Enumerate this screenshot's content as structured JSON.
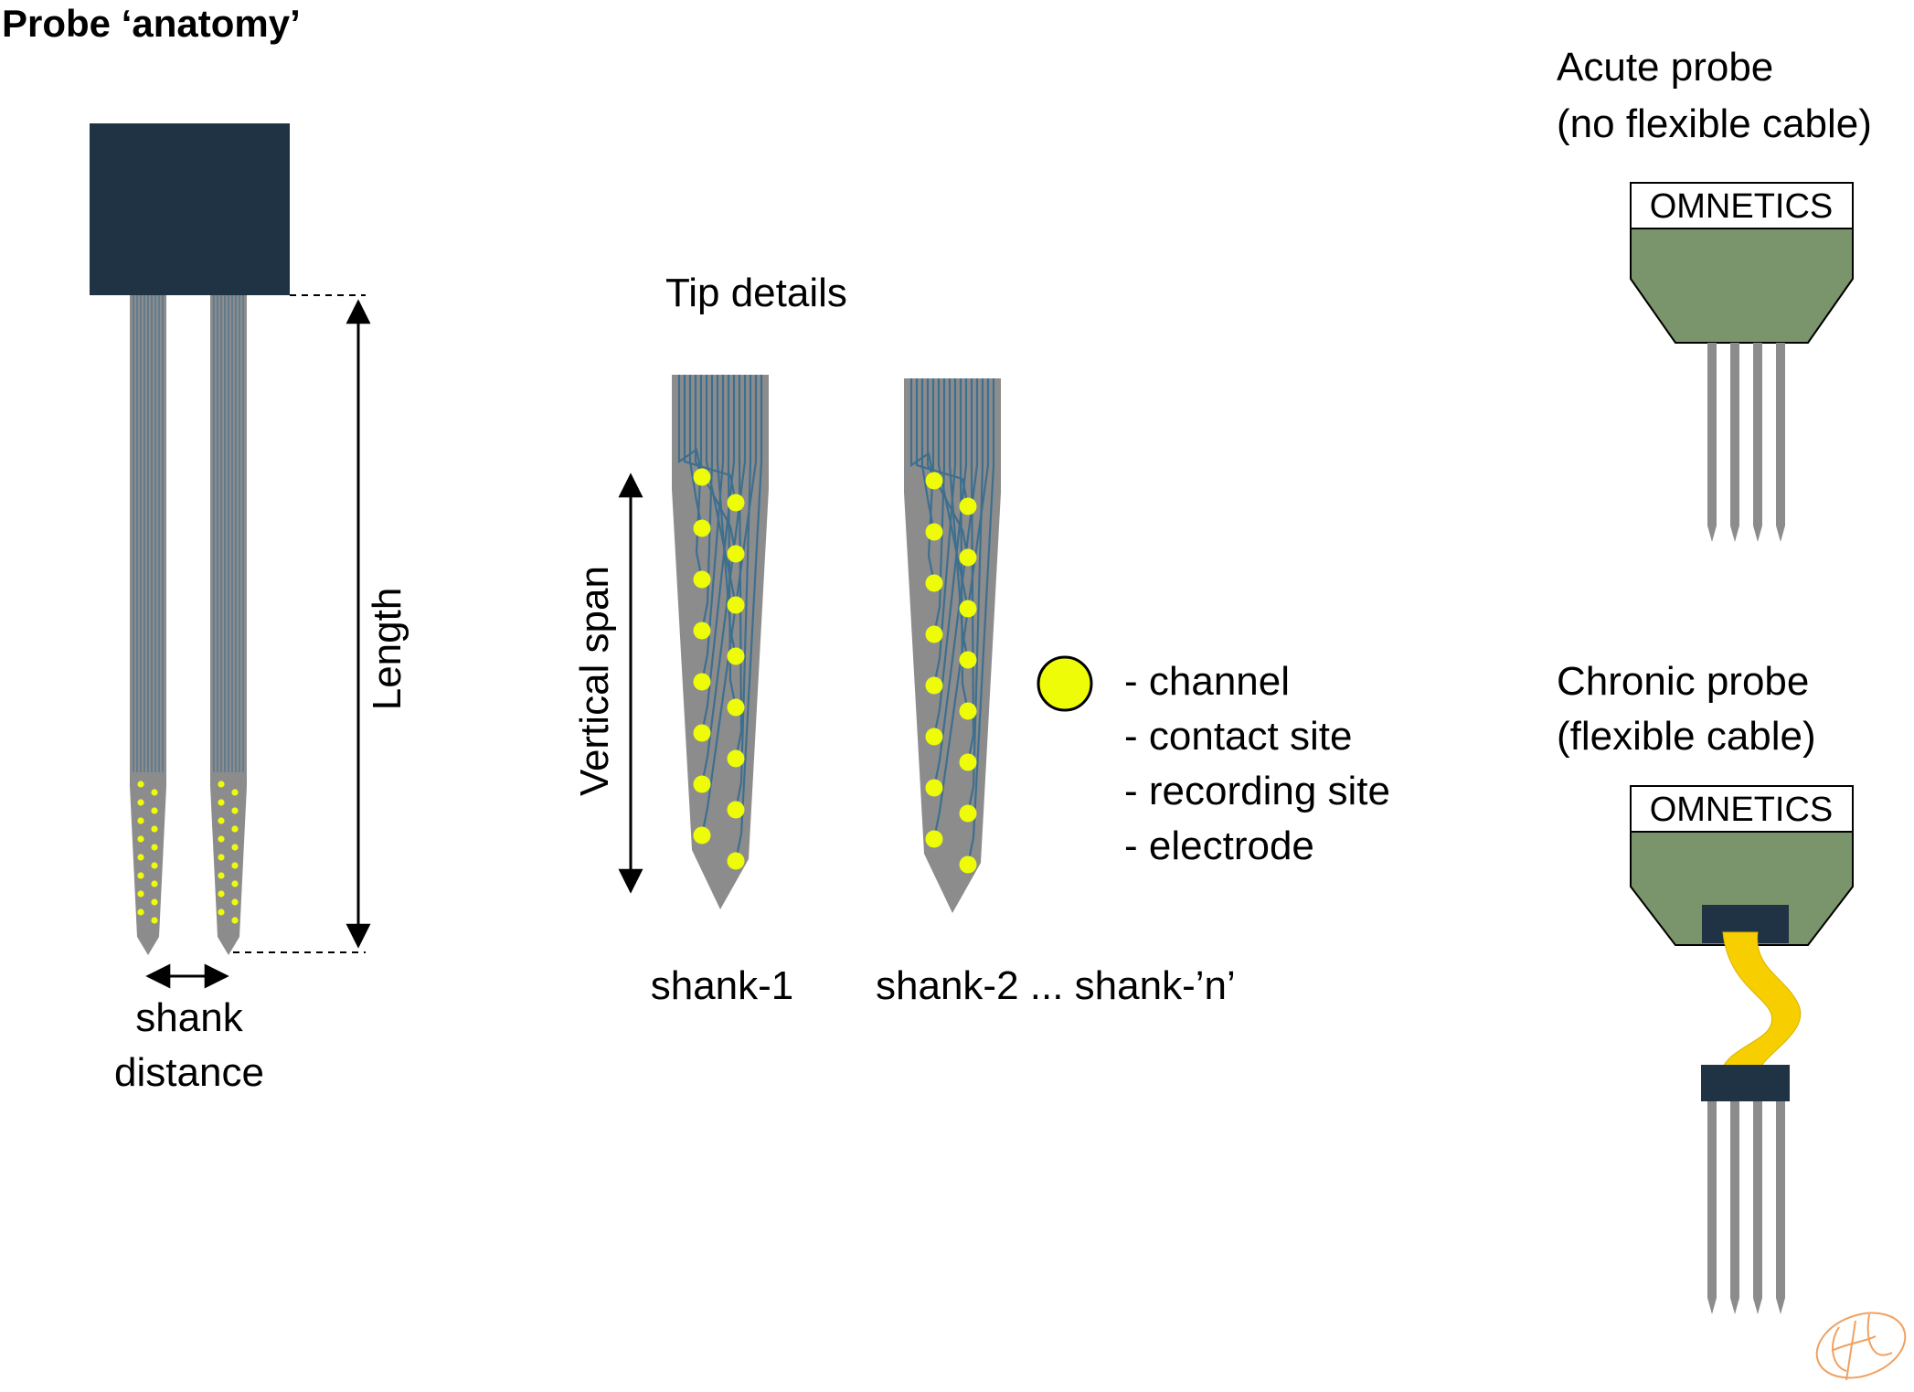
{
  "figure": {
    "title": "Probe ‘anatomy’",
    "length_label": "Length",
    "shank_distance_label": [
      "shank",
      "distance"
    ],
    "tip_details_label": "Tip details",
    "vertical_span_label": "Vertical span",
    "shank_labels": [
      "shank-1",
      "shank-2 ... shank-’n’"
    ],
    "legend": {
      "symbol": "channel-dot",
      "items": [
        "- channel",
        "- contact site",
        "- recording site",
        "- electrode"
      ]
    },
    "acute_probe": {
      "title_lines": [
        "Acute probe",
        "(no flexible cable)"
      ],
      "connector_label": "OMNETICS",
      "shank_count": 4
    },
    "chronic_probe": {
      "title_lines": [
        "Chronic probe",
        "(flexible cable)"
      ],
      "connector_label": "OMNETICS",
      "shank_count": 4
    },
    "colors": {
      "probe_base": "#1f3344",
      "shank_gray": "#8c8c8c",
      "trace_blue": "#3d6f8f",
      "channel_yellow": "#eefc07",
      "connector_green": "#7a946b",
      "cable_yellow": "#f7cf00",
      "signature_orange": "#f0a060"
    },
    "tip_channels_per_shank": 16,
    "overview_channels_per_shank": 16
  }
}
